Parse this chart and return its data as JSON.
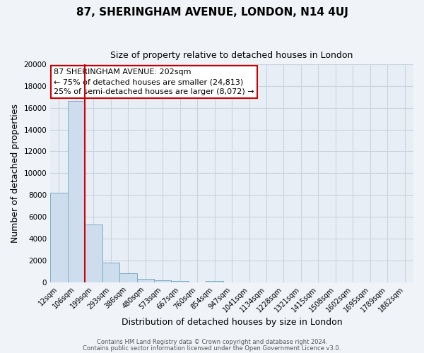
{
  "title": "87, SHERINGHAM AVENUE, LONDON, N14 4UJ",
  "subtitle": "Size of property relative to detached houses in London",
  "xlabel": "Distribution of detached houses by size in London",
  "ylabel": "Number of detached properties",
  "bin_labels": [
    "12sqm",
    "106sqm",
    "199sqm",
    "293sqm",
    "386sqm",
    "480sqm",
    "573sqm",
    "667sqm",
    "760sqm",
    "854sqm",
    "947sqm",
    "1041sqm",
    "1134sqm",
    "1228sqm",
    "1321sqm",
    "1415sqm",
    "1508sqm",
    "1602sqm",
    "1695sqm",
    "1789sqm",
    "1882sqm"
  ],
  "bar_heights": [
    8200,
    16600,
    5300,
    1800,
    800,
    300,
    200,
    150,
    0,
    100,
    0,
    0,
    0,
    0,
    0,
    0,
    0,
    0,
    0,
    0,
    0
  ],
  "bar_color": "#cddded",
  "bar_edge_color": "#7aaec8",
  "vline_color": "#cc0000",
  "ylim": [
    0,
    20000
  ],
  "yticks": [
    0,
    2000,
    4000,
    6000,
    8000,
    10000,
    12000,
    14000,
    16000,
    18000,
    20000
  ],
  "annotation_title": "87 SHERINGHAM AVENUE: 202sqm",
  "annotation_line1": "← 75% of detached houses are smaller (24,813)",
  "annotation_line2": "25% of semi-detached houses are larger (8,072) →",
  "annotation_box_facecolor": "#ffffff",
  "annotation_box_edgecolor": "#cc0000",
  "footer_line1": "Contains HM Land Registry data © Crown copyright and database right 2024.",
  "footer_line2": "Contains public sector information licensed under the Open Government Licence v3.0.",
  "fig_bg_color": "#f0f4f8",
  "plot_bg_color": "#e8eef5",
  "grid_color": "#c8d4e0",
  "figsize": [
    6.0,
    5.0
  ],
  "dpi": 100
}
